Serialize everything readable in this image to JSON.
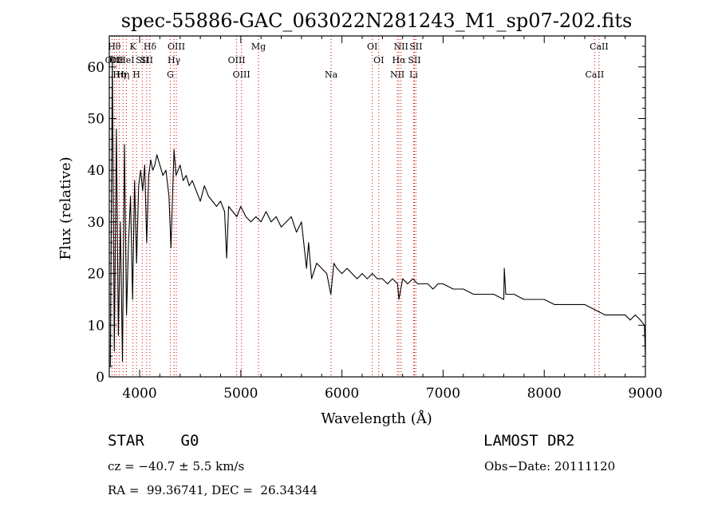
{
  "chart_data": {
    "type": "line",
    "title": "spec-55886-GAC_063022N281243_M1_sp07-202.fits",
    "xlabel": "Wavelength (Å)",
    "ylabel": "Flux (relative)",
    "xlim": [
      3700,
      9000
    ],
    "ylim": [
      0,
      66
    ],
    "xticks": [
      4000,
      5000,
      6000,
      7000,
      8000,
      9000
    ],
    "yticks": [
      0,
      10,
      20,
      30,
      40,
      50,
      60
    ],
    "grid": false,
    "line_color": "#000000",
    "marker_color": "#cc0000",
    "series": [
      {
        "x": [
          3710,
          3730,
          3750,
          3770,
          3790,
          3810,
          3830,
          3850,
          3870,
          3890,
          3910,
          3930,
          3950,
          3970,
          3990,
          4010,
          4030,
          4050,
          4070,
          4090,
          4110,
          4130,
          4150,
          4170,
          4200,
          4230,
          4260,
          4290,
          4310,
          4330,
          4340,
          4360,
          4380,
          4400,
          4430,
          4460,
          4490,
          4520,
          4560,
          4600,
          4640,
          4680,
          4720,
          4760,
          4800,
          4840,
          4860,
          4880,
          4920,
          4960,
          5000,
          5050,
          5100,
          5150,
          5200,
          5250,
          5300,
          5350,
          5400,
          5450,
          5500,
          5550,
          5600,
          5650,
          5670,
          5700,
          5750,
          5800,
          5850,
          5890,
          5920,
          5950,
          6000,
          6050,
          6100,
          6150,
          6200,
          6250,
          6300,
          6350,
          6400,
          6450,
          6500,
          6550,
          6563,
          6600,
          6650,
          6700,
          6750,
          6800,
          6850,
          6900,
          6950,
          7000,
          7100,
          7200,
          7300,
          7400,
          7500,
          7600,
          7605,
          7620,
          7700,
          7800,
          7900,
          8000,
          8100,
          8200,
          8300,
          8400,
          8500,
          8600,
          8700,
          8800,
          8850,
          8900,
          8950,
          8990,
          9000
        ],
        "y": [
          2,
          62,
          5,
          48,
          8,
          30,
          3,
          45,
          12,
          26,
          35,
          15,
          38,
          22,
          37,
          40,
          36,
          41,
          26,
          39,
          42,
          40,
          41,
          43,
          41,
          39,
          40,
          35,
          25,
          38,
          44,
          39,
          40,
          41,
          38,
          39,
          37,
          38,
          36,
          34,
          37,
          35,
          34,
          33,
          34,
          32,
          23,
          33,
          32,
          31,
          33,
          31,
          30,
          31,
          30,
          32,
          30,
          31,
          29,
          30,
          31,
          28,
          30,
          21,
          26,
          19,
          22,
          21,
          20,
          16,
          22,
          21,
          20,
          21,
          20,
          19,
          20,
          19,
          20,
          19,
          19,
          18,
          19,
          18,
          15,
          19,
          18,
          19,
          18,
          18,
          18,
          17,
          18,
          18,
          17,
          17,
          16,
          16,
          16,
          15,
          21,
          16,
          16,
          15,
          15,
          15,
          14,
          14,
          14,
          14,
          13,
          12,
          12,
          12,
          11,
          12,
          11,
          10,
          4
        ]
      }
    ],
    "lines": [
      {
        "x": 3727,
        "label": "OII",
        "row": 2
      },
      {
        "x": 3750,
        "label": "Hθ",
        "row": 1
      },
      {
        "x": 3771,
        "label": "OII",
        "row": 2
      },
      {
        "x": 3798,
        "label": "Hη",
        "row": 3
      },
      {
        "x": 3835,
        "label": "Hη",
        "row": 3
      },
      {
        "x": 3869,
        "label": "HeI",
        "row": 2
      },
      {
        "x": 3934,
        "label": "K",
        "row": 1
      },
      {
        "x": 3969,
        "label": "H",
        "row": 3
      },
      {
        "x": 4026,
        "label": "SII",
        "row": 2
      },
      {
        "x": 4070,
        "label": "SII",
        "row": 2
      },
      {
        "x": 4102,
        "label": "Hδ",
        "row": 1
      },
      {
        "x": 4304,
        "label": "G",
        "row": 3
      },
      {
        "x": 4340,
        "label": "Hγ",
        "row": 2
      },
      {
        "x": 4363,
        "label": "OIII",
        "row": 1
      },
      {
        "x": 4959,
        "label": "OIII",
        "row": 2
      },
      {
        "x": 5007,
        "label": "OIII",
        "row": 3
      },
      {
        "x": 5175,
        "label": "Mg",
        "row": 1
      },
      {
        "x": 5893,
        "label": "Na",
        "row": 3
      },
      {
        "x": 6300,
        "label": "OI",
        "row": 1
      },
      {
        "x": 6364,
        "label": "OI",
        "row": 2
      },
      {
        "x": 6548,
        "label": "NII",
        "row": 3
      },
      {
        "x": 6563,
        "label": "Hα",
        "row": 2
      },
      {
        "x": 6584,
        "label": "NII",
        "row": 1
      },
      {
        "x": 6708,
        "label": "Li",
        "row": 3
      },
      {
        "x": 6717,
        "label": "SII",
        "row": 2
      },
      {
        "x": 6731,
        "label": "SII",
        "row": 1
      },
      {
        "x": 8498,
        "label": "CaII",
        "row": 3
      },
      {
        "x": 8542,
        "label": "CaII",
        "row": 1
      }
    ]
  },
  "info": {
    "class": "STAR    G0",
    "survey": "LAMOST DR2",
    "cz": "cz = −40.7 ± 5.5 km/s",
    "obs_date": "Obs−Date: 20111120",
    "radec": "RA =  99.36741, DEC =  26.34344"
  }
}
